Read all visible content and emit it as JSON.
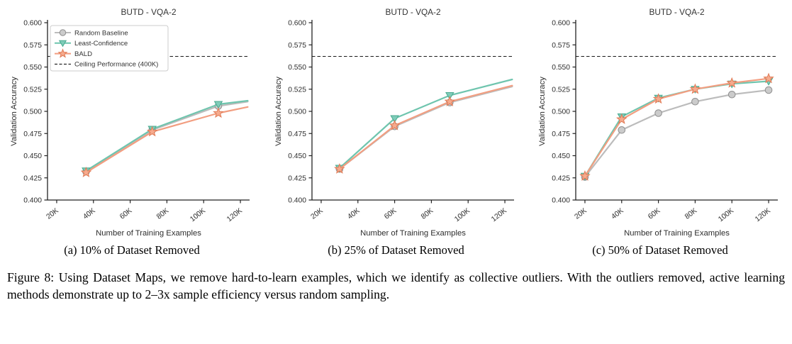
{
  "figure": {
    "caption": "Figure 8: Using Dataset Maps, we remove hard-to-learn examples, which we identify as collective outliers. With the outliers removed, active learning methods demonstrate up to 2–3x sample efficiency versus random sampling."
  },
  "styles": {
    "axis_color": "#222222",
    "tick_color": "#2d2d2d",
    "title_color": "#333333",
    "ceiling_color": "#1a1a1a",
    "legend_border": "#cccccc"
  },
  "chart_data": [
    {
      "type": "line",
      "title": "BUTD - VQA-2",
      "subcaption": "(a) 10% of Dataset Removed",
      "xlabel": "Number of Training Examples",
      "ylabel": "Validation Accuracy",
      "xlim": [
        15000,
        125000
      ],
      "ylim": [
        0.4,
        0.6
      ],
      "xtick_values": [
        20000,
        40000,
        60000,
        80000,
        100000,
        120000
      ],
      "xtick_labels": [
        "20K",
        "40K",
        "60K",
        "80K",
        "100K",
        "120K"
      ],
      "ytick_values": [
        0.4,
        0.425,
        0.45,
        0.475,
        0.5,
        0.525,
        0.55,
        0.575,
        0.6
      ],
      "ytick_labels": [
        "0.400",
        "0.425",
        "0.450",
        "0.475",
        "0.500",
        "0.525",
        "0.550",
        "0.575",
        "0.600"
      ],
      "ceiling": {
        "value": 0.562,
        "label": "Ceiling Performance (400K)"
      },
      "legend": {
        "show": true,
        "position": "upper-left",
        "items": [
          {
            "label": "Random Baseline",
            "marker": "circle",
            "line": "#bcbcbc",
            "fill": "#cbcbcb",
            "edge": "#8f8f8f"
          },
          {
            "label": "Least-Confidence",
            "marker": "triangle-down",
            "line": "#6fc5ae",
            "fill": "#7fccb9",
            "edge": "#49aa8f"
          },
          {
            "label": "BALD",
            "marker": "star",
            "line": "#f29e81",
            "fill": "#f6ab8e",
            "edge": "#e07a55"
          },
          {
            "label": "Ceiling Performance (400K)",
            "marker": "dashed-line",
            "line": "#1a1a1a"
          }
        ]
      },
      "series": [
        {
          "name": "Random Baseline",
          "marker": "circle",
          "line": "#bcbcbc",
          "fill": "#cbcbcb",
          "edge": "#8f8f8f",
          "x": [
            36000,
            72000,
            108000
          ],
          "y": [
            0.432,
            0.479,
            0.506
          ],
          "ext": {
            "x": 124000,
            "y": 0.511
          }
        },
        {
          "name": "Least-Confidence",
          "marker": "triangle-down",
          "line": "#6fc5ae",
          "fill": "#7fccb9",
          "edge": "#49aa8f",
          "x": [
            36000,
            72000,
            108000
          ],
          "y": [
            0.433,
            0.48,
            0.508
          ],
          "ext": {
            "x": 124000,
            "y": 0.512
          }
        },
        {
          "name": "BALD",
          "marker": "star",
          "line": "#f29e81",
          "fill": "#f6ab8e",
          "edge": "#e07a55",
          "x": [
            36000,
            72000,
            108000
          ],
          "y": [
            0.431,
            0.477,
            0.498
          ],
          "ext": {
            "x": 124000,
            "y": 0.505
          }
        }
      ]
    },
    {
      "type": "line",
      "title": "BUTD - VQA-2",
      "subcaption": "(b) 25% of Dataset Removed",
      "xlabel": "Number of Training Examples",
      "ylabel": "Validation Accuracy",
      "xlim": [
        15000,
        125000
      ],
      "ylim": [
        0.4,
        0.6
      ],
      "xtick_values": [
        20000,
        40000,
        60000,
        80000,
        100000,
        120000
      ],
      "xtick_labels": [
        "20K",
        "40K",
        "60K",
        "80K",
        "100K",
        "120K"
      ],
      "ytick_values": [
        0.4,
        0.425,
        0.45,
        0.475,
        0.5,
        0.525,
        0.55,
        0.575,
        0.6
      ],
      "ytick_labels": [
        "0.400",
        "0.425",
        "0.450",
        "0.475",
        "0.500",
        "0.525",
        "0.550",
        "0.575",
        "0.600"
      ],
      "ceiling": {
        "value": 0.562,
        "label": "Ceiling Performance (400K)"
      },
      "legend": {
        "show": false,
        "items": []
      },
      "series": [
        {
          "name": "Random Baseline",
          "marker": "circle",
          "line": "#bcbcbc",
          "fill": "#cbcbcb",
          "edge": "#8f8f8f",
          "x": [
            30000,
            60000,
            90000
          ],
          "y": [
            0.435,
            0.483,
            0.51
          ],
          "ext": {
            "x": 124000,
            "y": 0.528
          }
        },
        {
          "name": "Least-Confidence",
          "marker": "triangle-down",
          "line": "#6fc5ae",
          "fill": "#7fccb9",
          "edge": "#49aa8f",
          "x": [
            30000,
            60000,
            90000
          ],
          "y": [
            0.436,
            0.492,
            0.518
          ],
          "ext": {
            "x": 124000,
            "y": 0.536
          }
        },
        {
          "name": "BALD",
          "marker": "star",
          "line": "#f29e81",
          "fill": "#f6ab8e",
          "edge": "#e07a55",
          "x": [
            30000,
            60000,
            90000
          ],
          "y": [
            0.435,
            0.484,
            0.511
          ],
          "ext": {
            "x": 124000,
            "y": 0.529
          }
        }
      ]
    },
    {
      "type": "line",
      "title": "BUTD - VQA-2",
      "subcaption": "(c) 50% of Dataset Removed",
      "xlabel": "Number of Training Examples",
      "ylabel": "Validation Accuracy",
      "xlim": [
        15000,
        125000
      ],
      "ylim": [
        0.4,
        0.6
      ],
      "xtick_values": [
        20000,
        40000,
        60000,
        80000,
        100000,
        120000
      ],
      "xtick_labels": [
        "20K",
        "40K",
        "60K",
        "80K",
        "100K",
        "120K"
      ],
      "ytick_values": [
        0.4,
        0.425,
        0.45,
        0.475,
        0.5,
        0.525,
        0.55,
        0.575,
        0.6
      ],
      "ytick_labels": [
        "0.400",
        "0.425",
        "0.450",
        "0.475",
        "0.500",
        "0.525",
        "0.550",
        "0.575",
        "0.600"
      ],
      "ceiling": {
        "value": 0.562,
        "label": "Ceiling Performance (400K)"
      },
      "legend": {
        "show": false,
        "items": []
      },
      "series": [
        {
          "name": "Random Baseline",
          "marker": "circle",
          "line": "#bcbcbc",
          "fill": "#cbcbcb",
          "edge": "#8f8f8f",
          "x": [
            20000,
            40000,
            60000,
            80000,
            100000,
            120000
          ],
          "y": [
            0.426,
            0.479,
            0.498,
            0.511,
            0.519,
            0.524
          ]
        },
        {
          "name": "Least-Confidence",
          "marker": "triangle-down",
          "line": "#6fc5ae",
          "fill": "#7fccb9",
          "edge": "#49aa8f",
          "x": [
            20000,
            40000,
            60000,
            80000,
            100000,
            120000
          ],
          "y": [
            0.427,
            0.494,
            0.515,
            0.525,
            0.531,
            0.534
          ]
        },
        {
          "name": "BALD",
          "marker": "star",
          "line": "#f29e81",
          "fill": "#f6ab8e",
          "edge": "#e07a55",
          "x": [
            20000,
            40000,
            60000,
            80000,
            100000,
            120000
          ],
          "y": [
            0.427,
            0.491,
            0.514,
            0.525,
            0.532,
            0.537
          ]
        }
      ]
    }
  ]
}
